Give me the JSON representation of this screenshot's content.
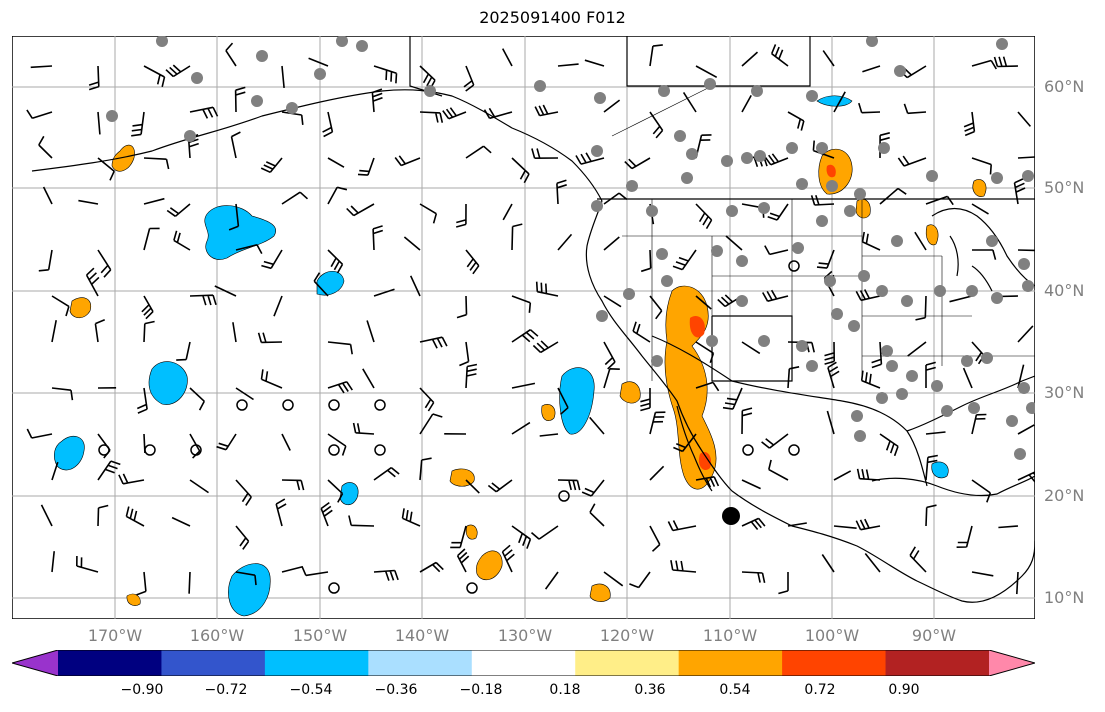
{
  "title": "2025091400 F012",
  "lat_labels": [
    "60°N",
    "50°N",
    "40°N",
    "30°N",
    "20°N",
    "10°N"
  ],
  "lon_labels": [
    "170°W",
    "160°W",
    "150°W",
    "140°W",
    "130°W",
    "120°W",
    "110°W",
    "100°W",
    "90°W"
  ],
  "colorbar": {
    "ticks": [
      "−0.90",
      "−0.72",
      "−0.54",
      "−0.36",
      "−0.18",
      "0.18",
      "0.36",
      "0.54",
      "0.72",
      "0.90"
    ],
    "colors": [
      "#9933cc",
      "#000080",
      "#3355cc",
      "#00bfff",
      "#aadfff",
      "#ffffff",
      "#ffee88",
      "#ffa500",
      "#ff4400",
      "#b22222",
      "#ff88aa"
    ]
  },
  "colors": {
    "ocean": "#ffffff",
    "grid": "#aaaaaa",
    "coast": "#000000",
    "station": "#808080",
    "positive": "#ffa500",
    "strong_positive": "#ff4400",
    "negative": "#00bfff",
    "weak_negative": "#aadfff"
  },
  "legend_icons": {
    "station_marker": "filled-gray-circle",
    "calm_wind": "open-circle",
    "center_marker": "filled-black-circle"
  }
}
